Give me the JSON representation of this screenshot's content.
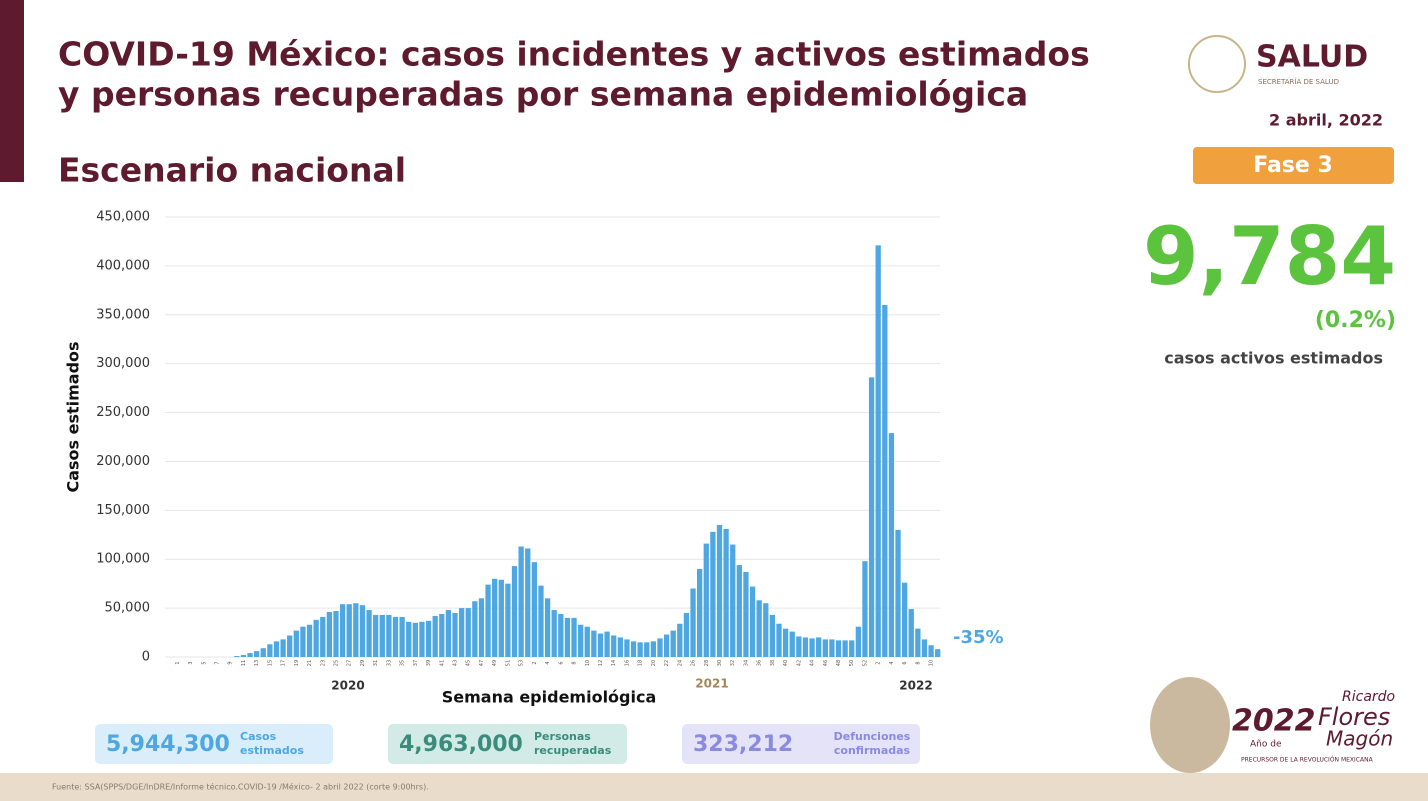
{
  "header": {
    "title_lines": [
      "COVID-19 México: casos incidentes y activos estimados",
      "y personas recuperadas por semana epidemiológica"
    ],
    "subtitle": "Escenario nacional",
    "logo": "SALUD",
    "logo_sub": "SECRETARÍA DE SALUD",
    "date": "2 abril, 2022",
    "phase": "Fase 3"
  },
  "side": {
    "active": "9,784",
    "active_pct": "(0.2%)",
    "active_label": "casos activos estimados"
  },
  "chart_data": {
    "type": "bar",
    "color": "#4ea7e1",
    "grid": true,
    "y_label": "Casos estimados",
    "x_label": "Semana epidemiológica",
    "x_groups": [
      "2020",
      "2021",
      "2022"
    ],
    "annotation": "-35%",
    "ylim": [
      0,
      450000
    ],
    "yticks": [
      0,
      {
        "value": 50000,
        "label": "50,000"
      },
      {
        "value": 100000,
        "label": "100,000"
      },
      {
        "value": 150000,
        "label": "150,000"
      },
      {
        "value": 200000,
        "label": "200,000"
      },
      {
        "value": 250000,
        "label": "250,000"
      },
      {
        "value": 300000,
        "label": "300,000"
      },
      {
        "value": 350000,
        "label": "350,000"
      },
      {
        "value": 400000,
        "label": "400,000"
      },
      {
        "value": 450000,
        "label": "450,000"
      }
    ],
    "categories": [
      "1",
      null,
      "3",
      null,
      "5",
      null,
      "7",
      null,
      "9",
      null,
      "11",
      null,
      "13",
      null,
      "15",
      null,
      "17",
      null,
      "19",
      null,
      "21",
      null,
      "23",
      null,
      "25",
      null,
      "27",
      null,
      "29",
      null,
      "31",
      null,
      "33",
      null,
      "35",
      null,
      "37",
      null,
      "39",
      null,
      "41",
      null,
      "43",
      null,
      "45",
      null,
      "47",
      null,
      "49",
      null,
      "51",
      null,
      "53",
      null,
      "2",
      null,
      "4",
      null,
      "6",
      null,
      "8",
      null,
      "10",
      null,
      "12",
      null,
      "14",
      null,
      "16",
      null,
      "18",
      null,
      "20",
      null,
      "22",
      null,
      "24",
      null,
      "26",
      null,
      "28",
      null,
      "30",
      null,
      "32",
      null,
      "34",
      null,
      "36",
      null,
      "38",
      null,
      "40",
      null,
      "42",
      null,
      "44",
      null,
      "46",
      null,
      "48",
      null,
      "50",
      null,
      "52",
      null,
      "2",
      null,
      "4",
      null,
      "6",
      null,
      "8",
      null,
      "10",
      null
    ],
    "values": [
      0,
      0,
      0,
      0,
      0,
      0,
      0,
      0,
      0,
      1000,
      2000,
      4000,
      6000,
      9000,
      13000,
      16000,
      18000,
      22000,
      27000,
      31000,
      33000,
      38000,
      41000,
      46000,
      47000,
      54000,
      54000,
      55000,
      53000,
      48000,
      43000,
      43000,
      43000,
      41000,
      41000,
      36000,
      35000,
      36000,
      37000,
      42000,
      44000,
      48000,
      45000,
      50000,
      50000,
      57000,
      60000,
      74000,
      80000,
      79000,
      75000,
      93000,
      113000,
      111000,
      97000,
      73000,
      60000,
      48000,
      44000,
      40000,
      40000,
      33000,
      31000,
      27000,
      24000,
      26000,
      22000,
      20000,
      18000,
      16000,
      15000,
      15000,
      16000,
      19000,
      23000,
      27000,
      34000,
      45000,
      70000,
      90000,
      116000,
      128000,
      135000,
      131000,
      115000,
      94000,
      87000,
      72000,
      58000,
      55000,
      43000,
      34000,
      29000,
      26000,
      21000,
      20000,
      19000,
      20000,
      18000,
      18000,
      17000,
      17000,
      17000,
      31000,
      98000,
      286000,
      421000,
      360000,
      229000,
      130000,
      76000,
      49000,
      29000,
      18000,
      12000,
      8000
    ]
  },
  "summary": [
    {
      "value": "5,944,300",
      "label": "Casos estimados"
    },
    {
      "value": "4,963,000",
      "label": "Personas recuperadas"
    },
    {
      "value": "323,212",
      "label": "Defunciones confirmadas"
    }
  ],
  "emblem": {
    "year": "2022",
    "pre": "Año de",
    "name1": "Ricardo",
    "name2": "Flores",
    "name3": "Magón",
    "motto": "PRECURSOR DE LA REVOLUCIÓN MEXICANA"
  },
  "footer": "Fuente: SSA(SPPS/DGE/InDRE/Informe técnico.COVID-19 /México- 2 abril 2022 (corte 9:00hrs)."
}
